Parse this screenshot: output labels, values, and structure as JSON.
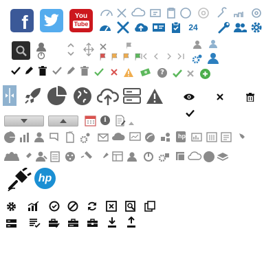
{
  "colors": {
    "facebook": "#3b5998",
    "twitter": "#55acee",
    "youtube": "#cc181e",
    "blue_icon": "#1b6fae",
    "dark_icon": "#1a1a1a",
    "gray_icon": "#7a7a7a",
    "light_gray": "#b0b0b0",
    "green": "#5cb85c",
    "red": "#d9534f",
    "orange": "#f0ad4e",
    "hp_blue": "#1b8fd3"
  },
  "brand": {
    "facebook_letter": "f",
    "youtube_you": "You",
    "youtube_tube": "Tube",
    "hp_text": "hp"
  },
  "misc": {
    "calendar_day": "24",
    "bullet_icon_text": "hp"
  },
  "icons": [
    "facebook-icon",
    "twitter-icon",
    "youtube-icon",
    "dashboard-icon",
    "tools-icon",
    "cloud-upload-icon",
    "id-card-icon",
    "clipboard-icon",
    "history-24-icon",
    "gear-icon",
    "wrench-icon",
    "users-icon",
    "cog-icon",
    "search-icon",
    "user-power-icon",
    "up-down-arrows-icon",
    "move-icon",
    "close-icon",
    "flag-icon",
    "first-page-icon",
    "prev-icon",
    "next-icon",
    "last-page-icon",
    "check-icon",
    "pencil-icon",
    "trash-icon",
    "ok-icon",
    "cancel-icon",
    "warning-icon",
    "money-icon",
    "help-icon",
    "add-icon",
    "split-icon",
    "rocket-icon",
    "pie-chart-icon",
    "globe-icon",
    "cloud-upload-large-icon",
    "server-icon",
    "warning-large-icon",
    "eye-icon",
    "close-small-icon",
    "trash-small-icon",
    "checkmark-icon",
    "dropdown-button",
    "comment-button",
    "calendar-icon",
    "info-icon",
    "edit-document-icon",
    "hp-logo",
    "plug-icon"
  ]
}
